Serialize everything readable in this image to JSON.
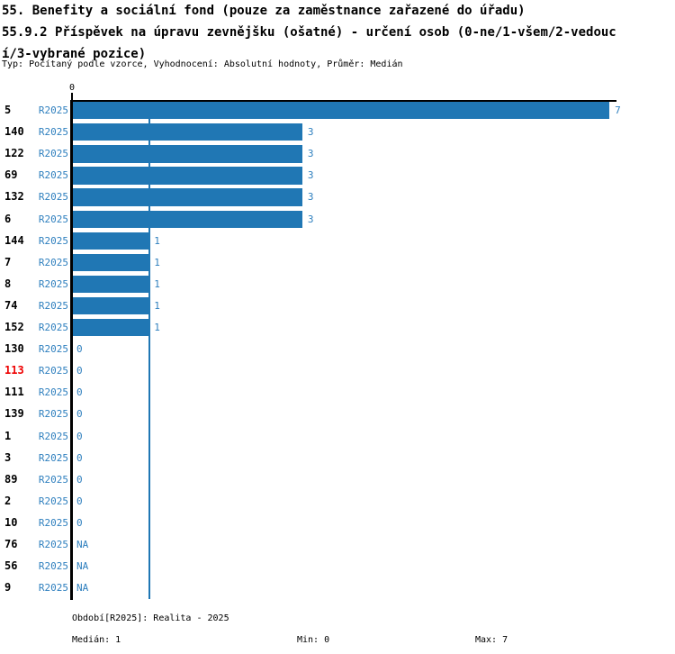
{
  "header": {
    "title_line1": "55. Benefity a sociální fond (pouze za zaměstnance zařazené do úřadu)",
    "title_line2": "55.9.2 Příspěvek na úpravu zevnějšku (ošatné) - určení osob (0-ne/1-všem/2-vedouc",
    "title_line3": "í/3-vybrané pozice)",
    "subtitle": "Typ: Počítaný podle vzorce, Vyhodnocení: Absolutní hodnoty, Průměr: Medián"
  },
  "chart_data": {
    "type": "bar",
    "orientation": "horizontal",
    "title": "55.9.2 Příspěvek na úpravu zevnějšku (ošatné) - určení osob (0-ne/1-všem/2-vedoucí/3-vybrané pozice)",
    "xlabel": "",
    "ylabel": "",
    "x_axis": {
      "min": 0,
      "max": 7.09,
      "tick_labels": [
        "0"
      ],
      "grid": false
    },
    "median_reference_line": 1,
    "legend": null,
    "series_period": "R2025",
    "rows": [
      {
        "id": "5",
        "period": "R2025",
        "value": 7,
        "value_label": "7",
        "highlight": false
      },
      {
        "id": "140",
        "period": "R2025",
        "value": 3,
        "value_label": "3",
        "highlight": false
      },
      {
        "id": "122",
        "period": "R2025",
        "value": 3,
        "value_label": "3",
        "highlight": false
      },
      {
        "id": "69",
        "period": "R2025",
        "value": 3,
        "value_label": "3",
        "highlight": false
      },
      {
        "id": "132",
        "period": "R2025",
        "value": 3,
        "value_label": "3",
        "highlight": false
      },
      {
        "id": "6",
        "period": "R2025",
        "value": 3,
        "value_label": "3",
        "highlight": false
      },
      {
        "id": "144",
        "period": "R2025",
        "value": 1,
        "value_label": "1",
        "highlight": false
      },
      {
        "id": "7",
        "period": "R2025",
        "value": 1,
        "value_label": "1",
        "highlight": false
      },
      {
        "id": "8",
        "period": "R2025",
        "value": 1,
        "value_label": "1",
        "highlight": false
      },
      {
        "id": "74",
        "period": "R2025",
        "value": 1,
        "value_label": "1",
        "highlight": false
      },
      {
        "id": "152",
        "period": "R2025",
        "value": 1,
        "value_label": "1",
        "highlight": false
      },
      {
        "id": "130",
        "period": "R2025",
        "value": 0,
        "value_label": "0",
        "highlight": false
      },
      {
        "id": "113",
        "period": "R2025",
        "value": 0,
        "value_label": "0",
        "highlight": true
      },
      {
        "id": "111",
        "period": "R2025",
        "value": 0,
        "value_label": "0",
        "highlight": false
      },
      {
        "id": "139",
        "period": "R2025",
        "value": 0,
        "value_label": "0",
        "highlight": false
      },
      {
        "id": "1",
        "period": "R2025",
        "value": 0,
        "value_label": "0",
        "highlight": false
      },
      {
        "id": "3",
        "period": "R2025",
        "value": 0,
        "value_label": "0",
        "highlight": false
      },
      {
        "id": "89",
        "period": "R2025",
        "value": 0,
        "value_label": "0",
        "highlight": false
      },
      {
        "id": "2",
        "period": "R2025",
        "value": 0,
        "value_label": "0",
        "highlight": false
      },
      {
        "id": "10",
        "period": "R2025",
        "value": 0,
        "value_label": "0",
        "highlight": false
      },
      {
        "id": "76",
        "period": "R2025",
        "value": null,
        "value_label": "NA",
        "highlight": false
      },
      {
        "id": "56",
        "period": "R2025",
        "value": null,
        "value_label": "NA",
        "highlight": false
      },
      {
        "id": "9",
        "period": "R2025",
        "value": null,
        "value_label": "NA",
        "highlight": false
      }
    ],
    "colors": {
      "bar": "#2077b4",
      "blue_text": "#2e7fbe",
      "median_line": "#1f77b4",
      "highlight_red": "#ee0000",
      "axis_black": "#000000"
    },
    "summary": {
      "median": 1,
      "min": 0,
      "max": 7
    }
  },
  "footer": {
    "period_label": "Období[R2025]: Realita - 2025",
    "median_label": "Medián: 1",
    "min_label": "Min: 0",
    "max_label": "Max: 7"
  }
}
